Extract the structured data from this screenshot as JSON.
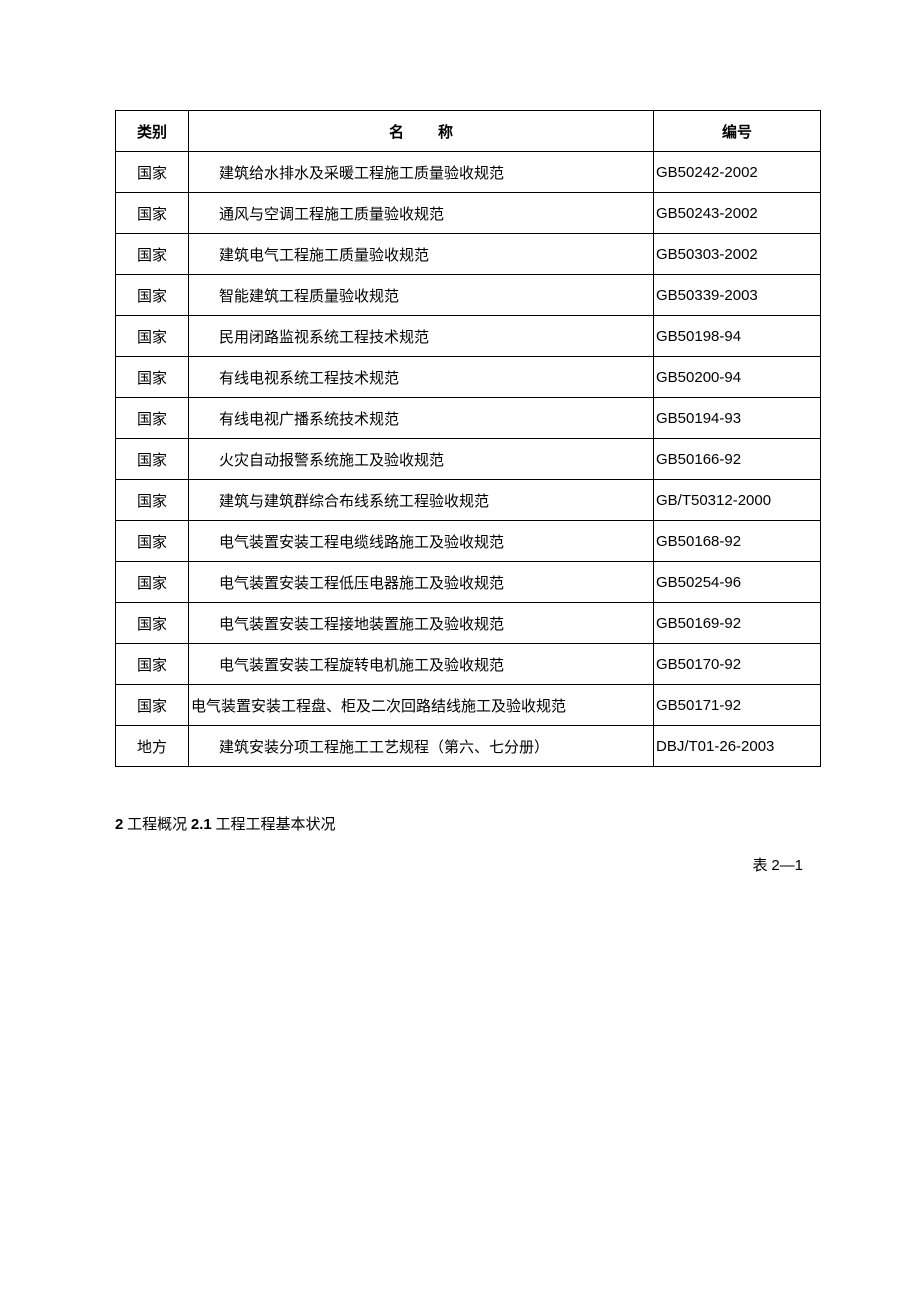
{
  "table": {
    "columns": {
      "category": "类别",
      "name": "名称",
      "code": "编号"
    },
    "rows": [
      {
        "category": "国家",
        "name": "建筑给水排水及采暖工程施工质量验收规范",
        "code": "GB50242-2002",
        "indent": true
      },
      {
        "category": "国家",
        "name": "通风与空调工程施工质量验收规范",
        "code": "GB50243-2002",
        "indent": true
      },
      {
        "category": "国家",
        "name": "建筑电气工程施工质量验收规范",
        "code": "GB50303-2002",
        "indent": true
      },
      {
        "category": "国家",
        "name": "智能建筑工程质量验收规范",
        "code": "GB50339-2003",
        "indent": true
      },
      {
        "category": "国家",
        "name": "民用闭路监视系统工程技术规范",
        "code": "GB50198-94",
        "indent": true
      },
      {
        "category": "国家",
        "name": "有线电视系统工程技术规范",
        "code": "GB50200-94",
        "indent": true
      },
      {
        "category": "国家",
        "name": "有线电视广播系统技术规范",
        "code": "GB50194-93",
        "indent": true
      },
      {
        "category": "国家",
        "name": "火灾自动报警系统施工及验收规范",
        "code": "GB50166-92",
        "indent": true
      },
      {
        "category": "国家",
        "name": "建筑与建筑群综合布线系统工程验收规范",
        "code": "GB/T50312-2000",
        "indent": true
      },
      {
        "category": "国家",
        "name": "电气装置安装工程电缆线路施工及验收规范",
        "code": "GB50168-92",
        "indent": true
      },
      {
        "category": "国家",
        "name": "电气装置安装工程低压电器施工及验收规范",
        "code": "GB50254-96",
        "indent": true
      },
      {
        "category": "国家",
        "name": "电气装置安装工程接地装置施工及验收规范",
        "code": "GB50169-92",
        "indent": true
      },
      {
        "category": "国家",
        "name": "电气装置安装工程旋转电机施工及验收规范",
        "code": "GB50170-92",
        "indent": true
      },
      {
        "category": "国家",
        "name": "电气装置安装工程盘、柜及二次回路结线施工及验收规范",
        "code": "GB50171-92",
        "indent": false
      },
      {
        "category": "地方",
        "name": "建筑安装分项工程施工工艺规程（第六、七分册）",
        "code": "DBJ/T01-26-2003",
        "indent": true
      }
    ]
  },
  "section": {
    "num1": "2",
    "text1": " 工程概况 ",
    "num2": "2.1",
    "text2": " 工程工程基本状况"
  },
  "tableLabel": {
    "prefix": "表 ",
    "num": "2—1"
  }
}
